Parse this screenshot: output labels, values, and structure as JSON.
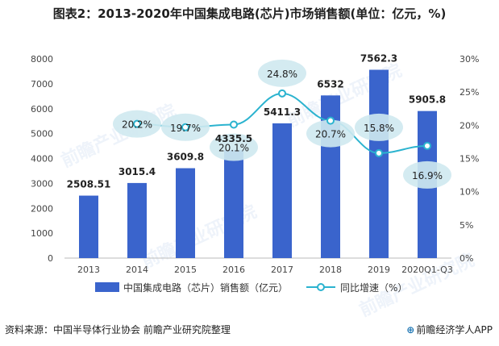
{
  "page": {
    "title": "图表2：2013-2020年中国集成电路(芯片)市场销售额(单位：亿元，%)",
    "source": "资料来源：中国半导体行业协会 前瞻产业研究院整理",
    "brand": "前瞻经济学人APP",
    "watermark": "前瞻产业研究院"
  },
  "colors": {
    "bar": "#3a64cc",
    "line": "#2bb3cf",
    "bubble": "#cfe9ef",
    "axis": "#bbbbbb"
  },
  "chart_data": {
    "type": "bar",
    "categories": [
      "2013",
      "2014",
      "2015",
      "2016",
      "2017",
      "2018",
      "2019",
      "2020Q1-Q3"
    ],
    "series": [
      {
        "name": "中国集成电路（芯片）销售额（亿元）",
        "type": "bar",
        "axis": "left",
        "values": [
          2508.51,
          3015.4,
          3609.8,
          4335.5,
          5411.3,
          6532,
          7562.3,
          5905.8
        ],
        "labels": [
          "2508.51",
          "3015.4",
          "3609.8",
          "4335.5",
          "5411.3",
          "6532",
          "7562.3",
          "5905.8"
        ]
      },
      {
        "name": "同比增速（%）",
        "type": "line",
        "axis": "right",
        "values": [
          null,
          20.2,
          19.7,
          20.1,
          24.8,
          20.7,
          15.8,
          16.9
        ],
        "labels": [
          "",
          "20.2%",
          "19.7%",
          "20.1%",
          "24.8%",
          "20.7%",
          "15.8%",
          "16.9%"
        ]
      }
    ],
    "y_left": {
      "min": 0,
      "max": 8000,
      "ticks": [
        "0",
        "1000",
        "2000",
        "3000",
        "4000",
        "5000",
        "6000",
        "7000",
        "8000"
      ]
    },
    "y_right": {
      "min": 0,
      "max": 30,
      "ticks": [
        "0%",
        "5%",
        "10%",
        "15%",
        "20%",
        "25%",
        "30%"
      ]
    },
    "legend_position": "bottom",
    "grid": false
  }
}
